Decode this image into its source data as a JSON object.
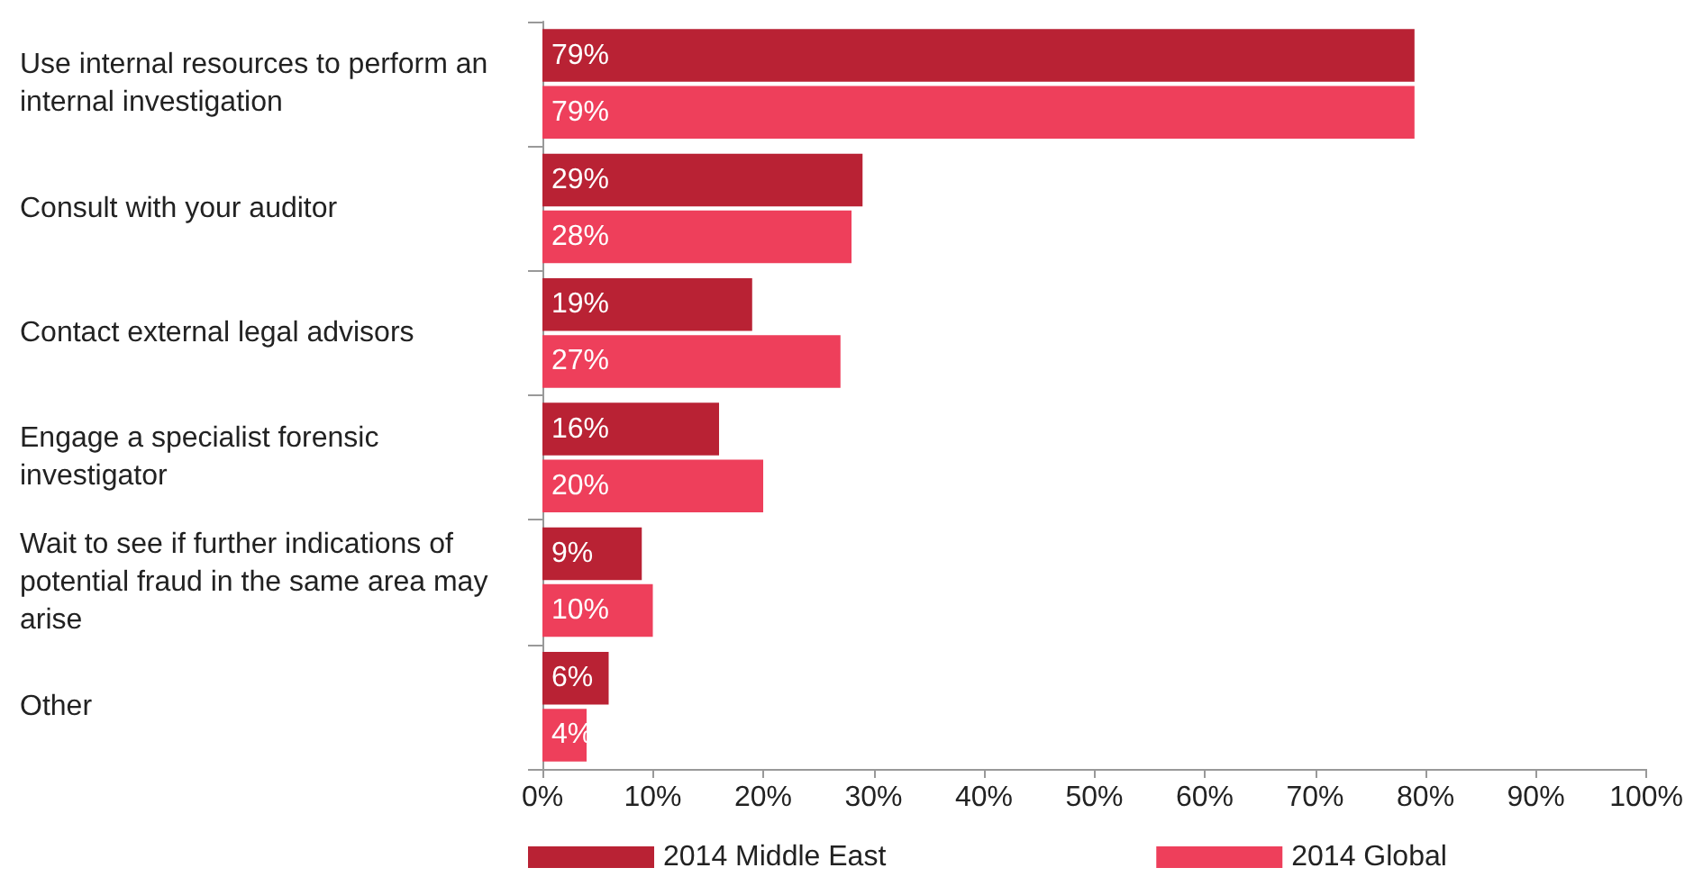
{
  "chart_data": {
    "type": "bar",
    "orientation": "horizontal",
    "categories": [
      "Use internal resources to perform an internal investigation",
      "Consult with your auditor",
      "Contact external legal advisors",
      "Engage a specialist forensic investigator",
      "Wait to see if further indications of potential fraud in the same area may arise",
      "Other"
    ],
    "series": [
      {
        "name": "2014 Middle East",
        "color": "#b92234",
        "values": [
          79,
          29,
          19,
          16,
          9,
          6
        ],
        "value_labels": [
          "79%",
          "29%",
          "19%",
          "16%",
          "9%",
          "6%"
        ]
      },
      {
        "name": "2014 Global",
        "color": "#ee3f5b",
        "values": [
          79,
          28,
          27,
          20,
          10,
          4
        ],
        "value_labels": [
          "79%",
          "28%",
          "27%",
          "20%",
          "10%",
          "4%"
        ]
      }
    ],
    "xlim": [
      0,
      100
    ],
    "xticks": [
      {
        "value": 0,
        "label": "0%"
      },
      {
        "value": 10,
        "label": "10%"
      },
      {
        "value": 20,
        "label": "20%"
      },
      {
        "value": 30,
        "label": "30%"
      },
      {
        "value": 40,
        "label": "40%"
      },
      {
        "value": 50,
        "label": "50%"
      },
      {
        "value": 60,
        "label": "60%"
      },
      {
        "value": 70,
        "label": "70%"
      },
      {
        "value": 80,
        "label": "80%"
      },
      {
        "value": 90,
        "label": "90%"
      },
      {
        "value": 100,
        "label": "100%"
      }
    ],
    "grid": false,
    "legend": "bottom left"
  }
}
